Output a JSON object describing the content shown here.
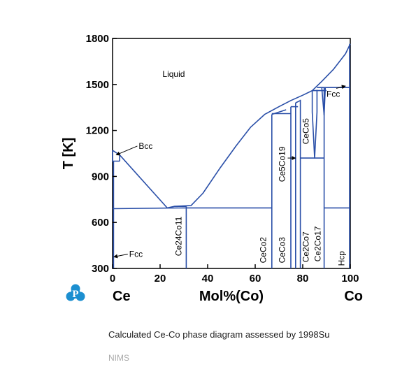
{
  "chart_data": {
    "type": "line",
    "title": "",
    "xlabel": "Mol%(Co)",
    "ylabel": "T [K]",
    "xlim": [
      0,
      100
    ],
    "ylim": [
      300,
      1800
    ],
    "xticks": [
      0,
      20,
      40,
      60,
      80,
      100
    ],
    "yticks": [
      300,
      600,
      900,
      1200,
      1500,
      1800
    ],
    "left_element": "Ce",
    "right_element": "Co",
    "grid": false,
    "line_color": "#2a4fa8",
    "series": [
      {
        "points": [
          [
            0,
            1070
          ],
          [
            3,
            1040
          ],
          [
            23,
            695
          ],
          [
            26,
            705
          ],
          [
            33,
            710
          ],
          [
            38,
            790
          ],
          [
            45,
            950
          ],
          [
            52,
            1100
          ],
          [
            58,
            1220
          ],
          [
            64,
            1305
          ],
          [
            70,
            1355
          ],
          [
            75,
            1395
          ],
          [
            80,
            1430
          ],
          [
            84,
            1460
          ],
          [
            88,
            1520
          ],
          [
            93,
            1600
          ],
          [
            98,
            1700
          ],
          [
            100,
            1765
          ]
        ]
      },
      {
        "points": [
          [
            0,
            1070
          ],
          [
            0,
            1000
          ],
          [
            3,
            1000
          ]
        ]
      },
      {
        "points": [
          [
            3,
            1040
          ],
          [
            3,
            1000
          ]
        ]
      },
      {
        "points": [
          [
            0,
            690
          ],
          [
            30,
            695
          ],
          [
            67,
            695
          ]
        ]
      },
      {
        "points": [
          [
            26,
            705
          ],
          [
            31,
            705
          ]
        ]
      },
      {
        "points": [
          [
            31,
            300
          ],
          [
            31,
            705
          ]
        ]
      },
      {
        "points": [
          [
            0.4,
            300
          ],
          [
            0.4,
            1000
          ]
        ]
      },
      {
        "points": [
          [
            67,
            300
          ],
          [
            67,
            1305
          ]
        ]
      },
      {
        "points": [
          [
            67,
            1305
          ],
          [
            73,
            1335
          ]
        ]
      },
      {
        "points": [
          [
            67,
            1310
          ],
          [
            75,
            1310
          ]
        ]
      },
      {
        "points": [
          [
            75,
            300
          ],
          [
            75,
            1355
          ]
        ]
      },
      {
        "points": [
          [
            75,
            1355
          ],
          [
            78,
            1355
          ]
        ]
      },
      {
        "points": [
          [
            77,
            300
          ],
          [
            77,
            1380
          ]
        ]
      },
      {
        "points": [
          [
            77,
            1380
          ],
          [
            79,
            1395
          ]
        ]
      },
      {
        "points": [
          [
            79,
            300
          ],
          [
            79,
            1400
          ]
        ]
      },
      {
        "points": [
          [
            79,
            1020
          ],
          [
            89,
            1020
          ]
        ]
      },
      {
        "points": [
          [
            84,
            1460
          ],
          [
            90,
            1460
          ]
        ]
      },
      {
        "points": [
          [
            84,
            1460
          ],
          [
            84,
            1320
          ],
          [
            85,
            1020
          ],
          [
            86,
            1320
          ],
          [
            86,
            1465
          ]
        ]
      },
      {
        "points": [
          [
            89,
            300
          ],
          [
            89,
            1480
          ]
        ]
      },
      {
        "points": [
          [
            88,
            1480
          ],
          [
            89,
            1300
          ],
          [
            89.5,
            1480
          ]
        ]
      },
      {
        "points": [
          [
            86,
            1480
          ],
          [
            100,
            1480
          ]
        ]
      },
      {
        "points": [
          [
            89,
            695
          ],
          [
            99.7,
            695
          ]
        ]
      },
      {
        "points": [
          [
            99.7,
            300
          ],
          [
            99.7,
            1765
          ]
        ]
      }
    ],
    "annotations": [
      {
        "text": "Liquid",
        "x": 21,
        "y": 1550,
        "rotate": 0
      },
      {
        "text": "Bcc",
        "x": 11,
        "y": 1080,
        "rotate": 0,
        "arrow_to": [
          1.5,
          1040
        ]
      },
      {
        "text": "Fcc",
        "x": 7,
        "y": 375,
        "rotate": 0,
        "arrow_to": [
          0.5,
          375
        ]
      },
      {
        "text": "Fcc",
        "x": 90,
        "y": 1420,
        "rotate": 0,
        "arrow_to": [
          98,
          1490
        ]
      },
      {
        "text": "Ce24Co11",
        "x": 29,
        "y": 510,
        "rotate": -90
      },
      {
        "text": "CeCo2",
        "x": 64.5,
        "y": 420,
        "rotate": -90
      },
      {
        "text": "CeCo3",
        "x": 72.5,
        "y": 420,
        "rotate": -90
      },
      {
        "text": "Ce5Co19",
        "x": 72.5,
        "y": 980,
        "rotate": -90,
        "arrow_to": [
          77,
          1020
        ]
      },
      {
        "text": "CeCo5",
        "x": 82.5,
        "y": 1195,
        "rotate": -90
      },
      {
        "text": "Ce2Co7",
        "x": 82.5,
        "y": 440,
        "rotate": -90
      },
      {
        "text": "Ce2Co17",
        "x": 87.5,
        "y": 460,
        "rotate": -90
      },
      {
        "text": "Hcp",
        "x": 97.5,
        "y": 365,
        "rotate": -90
      }
    ]
  },
  "caption": "Calculated Ce-Co phase diagram assessed by 1998Su",
  "footer": "NIMS",
  "logo": {
    "name": "nims-p-logo",
    "color": "#1c8fd0",
    "letter": "P"
  }
}
